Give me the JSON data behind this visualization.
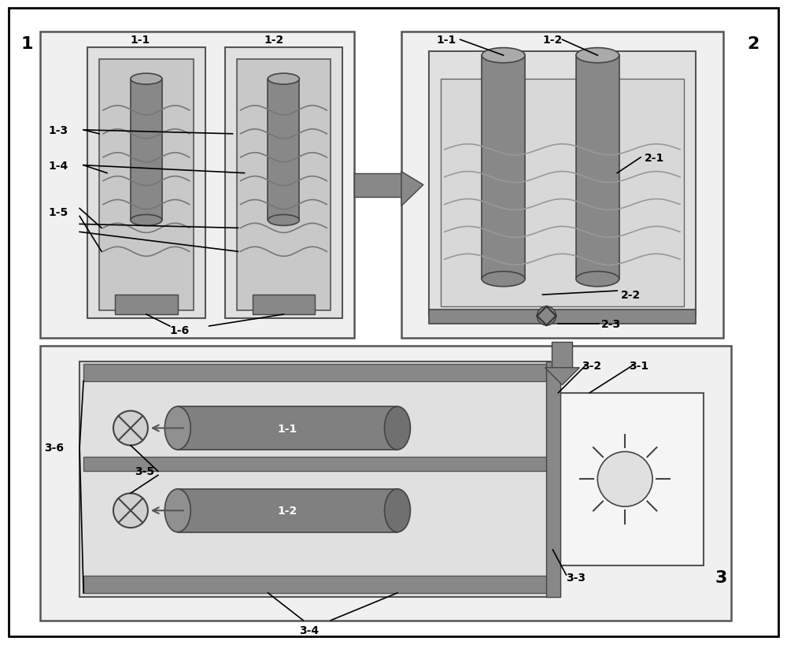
{
  "bg_color": "#ffffff",
  "outer_border_color": "#000000",
  "box_fill": "#d8d8d8",
  "dark_gray": "#808080",
  "medium_gray": "#a0a0a0",
  "light_gray": "#c8c8c8",
  "cylinder_color": "#888888",
  "dark_fill": "#686868",
  "panel_bg": "#e8e8e8",
  "arrow_color": "#606060",
  "label_color": "#000000",
  "title_fontsize": 14,
  "label_fontsize": 11
}
